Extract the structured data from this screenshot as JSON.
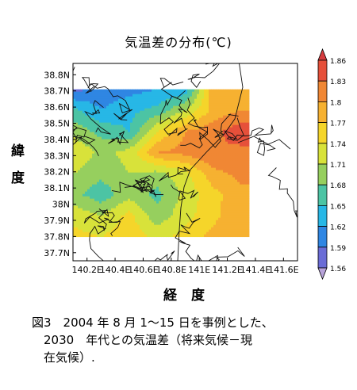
{
  "chart_data": {
    "type": "heatmap",
    "title": "気温差の分布(℃)",
    "ylabel_chars": [
      "緯",
      "度"
    ],
    "xlabel": "経 度",
    "x_ticks": [
      "140.2E",
      "140.4E",
      "140.6E",
      "140.8E",
      "141E",
      "141.2E",
      "141.4E",
      "141.6E"
    ],
    "x_tick_values": [
      140.2,
      140.4,
      140.6,
      140.8,
      141.0,
      141.2,
      141.4,
      141.6
    ],
    "y_ticks": [
      "37.7N",
      "37.8N",
      "37.9N",
      "38N",
      "38.1N",
      "38.2N",
      "38.3N",
      "38.4N",
      "38.5N",
      "38.6N",
      "38.7N",
      "38.8N"
    ],
    "y_tick_values": [
      37.7,
      37.8,
      37.9,
      38.0,
      38.1,
      38.2,
      38.3,
      38.4,
      38.5,
      38.6,
      38.7,
      38.8
    ],
    "xlim": [
      140.1,
      141.7
    ],
    "ylim": [
      37.65,
      38.87
    ],
    "data_extent": {
      "lon": [
        140.1,
        141.35
      ],
      "lat": [
        37.8,
        38.71
      ]
    },
    "colorbar": {
      "levels": [
        1.56,
        1.59,
        1.62,
        1.65,
        1.68,
        1.71,
        1.74,
        1.77,
        1.8,
        1.83,
        1.86
      ],
      "labels": [
        "1.86",
        "1.83",
        "1.8",
        "1.77",
        "1.74",
        "1.71",
        "1.68",
        "1.65",
        "1.62",
        "1.59",
        "1.56"
      ],
      "colors": [
        "#b8a3da",
        "#6a6cd6",
        "#2f86e3",
        "#27b7e6",
        "#4cc4a4",
        "#96cf5e",
        "#d8e23a",
        "#f5d52a",
        "#f6b131",
        "#f08734",
        "#e6503a",
        "#d63c3f"
      ]
    },
    "grid": {
      "lon": [
        140.1,
        140.3,
        140.5,
        140.7,
        140.9,
        141.1,
        141.3
      ],
      "lat": [
        38.71,
        38.58,
        38.45,
        38.32,
        38.19,
        38.06,
        37.93,
        37.8
      ],
      "values": [
        [
          1.58,
          1.6,
          1.61,
          1.62,
          1.63,
          1.79,
          1.79
        ],
        [
          1.66,
          1.62,
          1.64,
          1.66,
          1.71,
          1.78,
          1.8
        ],
        [
          1.7,
          1.67,
          1.65,
          1.74,
          1.8,
          1.82,
          1.85
        ],
        [
          1.74,
          1.7,
          1.72,
          1.8,
          1.81,
          1.83,
          1.82
        ],
        [
          1.71,
          1.69,
          1.71,
          1.7,
          1.73,
          1.79,
          1.81
        ],
        [
          1.69,
          1.66,
          1.7,
          1.67,
          1.72,
          1.76,
          1.79
        ],
        [
          1.73,
          1.71,
          1.75,
          1.69,
          1.73,
          1.76,
          1.8
        ],
        [
          1.75,
          1.74,
          1.76,
          1.73,
          1.75,
          1.78,
          1.8
        ]
      ]
    }
  },
  "caption": {
    "lines": [
      "図3　2004 年 8 月 1〜15 日を事例とした、",
      "　2030　年代との気温差（将来気候－現",
      "　在気候）."
    ]
  }
}
